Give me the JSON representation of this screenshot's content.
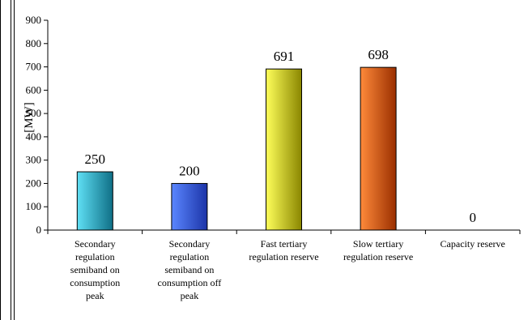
{
  "chart_data": {
    "type": "bar",
    "categories": [
      "Secondary regulation semiband on consumption peak",
      "Secondary regulation semiband on consumption off peak",
      "Fast tertiary regulation reserve",
      "Slow tertiary regulation reserve",
      "Capacity reserve"
    ],
    "category_label_lines": [
      [
        "Secondary",
        "regulation",
        "semiband on",
        "consumption",
        "peak"
      ],
      [
        "Secondary",
        "regulation",
        "semiband on",
        "consumption off",
        "peak"
      ],
      [
        "Fast tertiary",
        "regulation reserve"
      ],
      [
        "Slow tertiary",
        "regulation reserve"
      ],
      [
        "Capacity reserve"
      ]
    ],
    "values": [
      250,
      200,
      691,
      698,
      0
    ],
    "data_labels": [
      "250",
      "200",
      "691",
      "698",
      "0"
    ],
    "ylabel": "[MW]",
    "ylim": [
      0,
      900
    ],
    "yticks": [
      0,
      100,
      200,
      300,
      400,
      500,
      600,
      700,
      800,
      900
    ],
    "grid": false,
    "legend": "none",
    "bar_colors": [
      [
        "#5fe0f5",
        "#0f6f86"
      ],
      [
        "#5a86ff",
        "#1c34a8"
      ],
      [
        "#ffff5a",
        "#8a8600"
      ],
      [
        "#ff8a3a",
        "#9a2f00"
      ],
      [
        "#cccccc",
        "#777777"
      ]
    ]
  }
}
